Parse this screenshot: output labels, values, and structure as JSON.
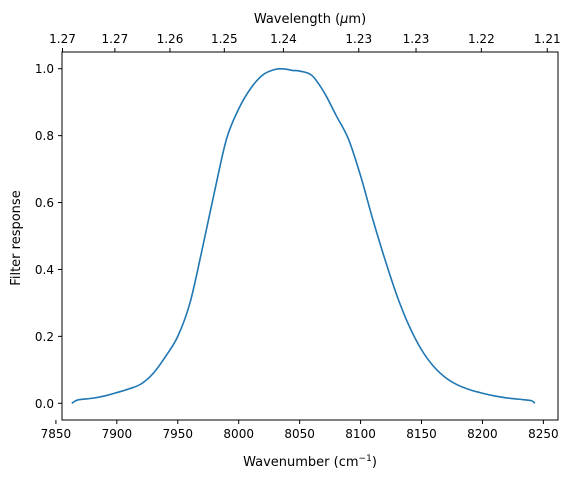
{
  "chart_data": {
    "type": "line",
    "xlabel": "Wavenumber (cm",
    "xlabel_sup": "−1",
    "xlabel_end": ")",
    "ylabel": "Filter response",
    "top_xlabel": "Wavelength (",
    "top_xlabel_mu": "μ",
    "top_xlabel_end": "m)",
    "xlim": [
      7855,
      8262
    ],
    "ylim": [
      -0.05,
      1.05
    ],
    "x_ticks": [
      {
        "value": 7850,
        "label": "7850"
      },
      {
        "value": 7900,
        "label": "7900"
      },
      {
        "value": 7950,
        "label": "7950"
      },
      {
        "value": 8000,
        "label": "8000"
      },
      {
        "value": 8050,
        "label": "8050"
      },
      {
        "value": 8100,
        "label": "8100"
      },
      {
        "value": 8150,
        "label": "8150"
      },
      {
        "value": 8200,
        "label": "8200"
      },
      {
        "value": 8250,
        "label": "8250"
      }
    ],
    "y_ticks": [
      {
        "value": 0.0,
        "label": "0.0"
      },
      {
        "value": 0.2,
        "label": "0.2"
      },
      {
        "value": 0.4,
        "label": "0.4"
      },
      {
        "value": 0.6,
        "label": "0.6"
      },
      {
        "value": 0.8,
        "label": "0.8"
      },
      {
        "value": 1.0,
        "label": "1.0"
      }
    ],
    "top_ticks": [
      {
        "wavenumber": 7855.4,
        "label": "1.27"
      },
      {
        "wavenumber": 7898.4,
        "label": "1.27"
      },
      {
        "wavenumber": 7943.6,
        "label": "1.26"
      },
      {
        "wavenumber": 7988.2,
        "label": "1.25"
      },
      {
        "wavenumber": 8036.7,
        "label": "1.24"
      },
      {
        "wavenumber": 8098.5,
        "label": "1.23"
      },
      {
        "wavenumber": 8145.5,
        "label": "1.23"
      },
      {
        "wavenumber": 8199.1,
        "label": "1.22"
      },
      {
        "wavenumber": 8253.2,
        "label": "1.21"
      }
    ],
    "series": [
      {
        "color": "#1f77b4",
        "x": [
          7863,
          7868,
          7880,
          7890,
          7900,
          7910,
          7920,
          7930,
          7940,
          7950,
          7960,
          7970,
          7980,
          7990,
          8000,
          8010,
          8020,
          8030,
          8038,
          8044,
          8050,
          8060,
          8070,
          8080,
          8090,
          8100,
          8110,
          8120,
          8130,
          8140,
          8150,
          8160,
          8170,
          8180,
          8190,
          8200,
          8210,
          8220,
          8230,
          8240,
          8243
        ],
        "values": [
          0.0,
          0.01,
          0.015,
          0.022,
          0.032,
          0.043,
          0.058,
          0.09,
          0.14,
          0.2,
          0.3,
          0.46,
          0.63,
          0.79,
          0.88,
          0.942,
          0.982,
          0.998,
          0.999,
          0.995,
          0.993,
          0.98,
          0.93,
          0.86,
          0.79,
          0.68,
          0.55,
          0.43,
          0.32,
          0.23,
          0.16,
          0.11,
          0.076,
          0.054,
          0.04,
          0.03,
          0.022,
          0.016,
          0.012,
          0.008,
          0.0
        ]
      }
    ]
  }
}
